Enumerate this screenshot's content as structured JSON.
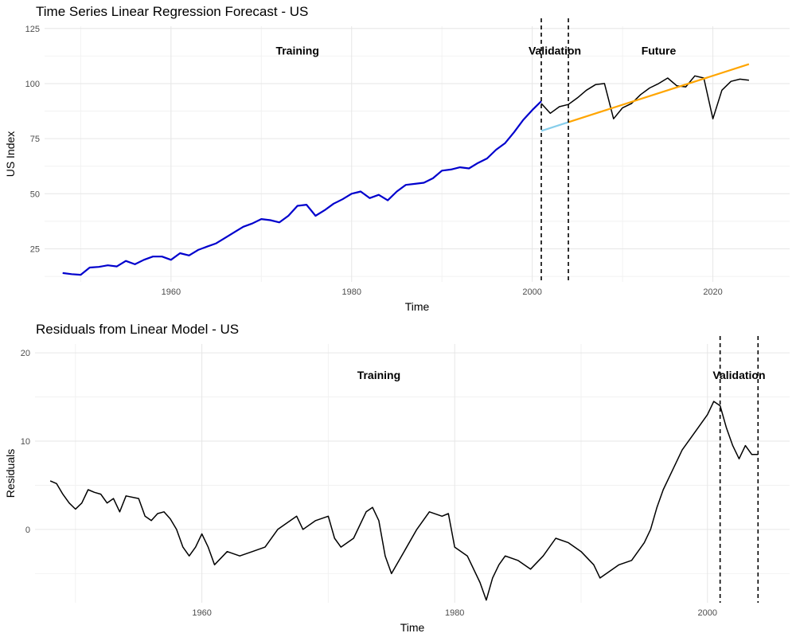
{
  "chart_data": [
    {
      "type": "line",
      "title": "Time Series Linear Regression Forecast - US",
      "xlabel": "Time",
      "ylabel": "US Index",
      "xlim": [
        1946,
        2028.5
      ],
      "ylim": [
        10,
        126
      ],
      "x_ticks": [
        1960,
        1980,
        2000,
        2020
      ],
      "y_ticks": [
        25,
        50,
        75,
        100,
        125
      ],
      "grid": true,
      "legend": "none",
      "annotations": [
        {
          "text": "Training",
          "x": 1974,
          "y": 115
        },
        {
          "text": "Validation",
          "x": 2002.5,
          "y": 115
        },
        {
          "text": "Future",
          "x": 2014,
          "y": 115
        }
      ],
      "vlines": [
        2001,
        2004
      ],
      "series": [
        {
          "color": "#0000cd",
          "x": [
            1948,
            1949,
            1950,
            1951,
            1952,
            1953,
            1954,
            1955,
            1956,
            1957,
            1958,
            1959,
            1960,
            1961,
            1962,
            1963,
            1964,
            1965,
            1966,
            1967,
            1968,
            1969,
            1970,
            1971,
            1972,
            1973,
            1974,
            1975,
            1976,
            1977,
            1978,
            1979,
            1980,
            1981,
            1982,
            1983,
            1984,
            1985,
            1986,
            1987,
            1988,
            1989,
            1990,
            1991,
            1992,
            1993,
            1994,
            1995,
            1996,
            1997,
            1998,
            1999,
            2000,
            2001
          ],
          "y": [
            14,
            13.5,
            13.2,
            16.5,
            16.8,
            17.5,
            17,
            19.5,
            18,
            20,
            21.5,
            21.5,
            20,
            23,
            22,
            24.5,
            26,
            27.5,
            30,
            32.5,
            35,
            36.5,
            38.5,
            38,
            37,
            40,
            44.5,
            45,
            40,
            42.5,
            45.5,
            47.5,
            50,
            51,
            48,
            49.5,
            47,
            51,
            54,
            54.5,
            55,
            57,
            60.5,
            61,
            62,
            61.5,
            64,
            66,
            70,
            73,
            78,
            83.5,
            88,
            92
          ]
        },
        {
          "color": "#000000",
          "x": [
            2001,
            2002,
            2003,
            2004,
            2005,
            2006,
            2007,
            2008,
            2009,
            2010,
            2011,
            2012,
            2013,
            2014,
            2015,
            2016,
            2017,
            2018,
            2019,
            2020,
            2021,
            2022,
            2023,
            2024
          ],
          "y": [
            91,
            86.5,
            89.5,
            90.5,
            93.5,
            97,
            99.5,
            100,
            84,
            89,
            91,
            95,
            98,
            100,
            102.5,
            99,
            98.5,
            103.5,
            102.5,
            84,
            97,
            101,
            102,
            101.5
          ]
        },
        {
          "color": "#87ceeb",
          "x": [
            2001,
            2004
          ],
          "y": [
            78.5,
            82.5
          ]
        },
        {
          "color": "#ffa500",
          "x": [
            2004,
            2024
          ],
          "y": [
            82.5,
            108.8
          ]
        }
      ]
    },
    {
      "type": "line",
      "title": "Residuals from Linear Model - US",
      "xlabel": "Time",
      "ylabel": "Residuals",
      "xlim": [
        1946.8,
        2006.5
      ],
      "ylim": [
        -8.3,
        21
      ],
      "x_ticks": [
        1960,
        1980,
        2000
      ],
      "y_ticks": [
        0,
        10,
        20
      ],
      "grid": true,
      "legend": "none",
      "annotations": [
        {
          "text": "Training",
          "x": 1974,
          "y": 17.5
        },
        {
          "text": "Validation",
          "x": 2002.5,
          "y": 17.5
        }
      ],
      "vlines": [
        2001,
        2004
      ],
      "series": [
        {
          "color": "#000000",
          "x": [
            1948,
            1948.5,
            1949,
            1949.5,
            1950,
            1950.5,
            1951,
            1951.5,
            1952,
            1952.5,
            1953,
            1953.5,
            1954,
            1955,
            1955.5,
            1956,
            1956.5,
            1957,
            1957.5,
            1958,
            1958.5,
            1959,
            1959.5,
            1960,
            1960.5,
            1961,
            1962,
            1963,
            1964,
            1965,
            1966,
            1967,
            1967.5,
            1968,
            1969,
            1970,
            1970.5,
            1971,
            1972,
            1973,
            1973.5,
            1974,
            1974.5,
            1975,
            1976,
            1977,
            1978,
            1979,
            1979.5,
            1980,
            1981,
            1982,
            1982.5,
            1983,
            1983.5,
            1984,
            1985,
            1986,
            1987,
            1988,
            1989,
            1990,
            1991,
            1991.5,
            1992,
            1993,
            1994,
            1995,
            1995.5,
            1996,
            1996.5,
            1997,
            1998,
            1999,
            2000,
            2000.5,
            2001,
            2001.5,
            2002,
            2002.5,
            2003,
            2003.5,
            2004
          ],
          "y": [
            5.5,
            5.2,
            4,
            3,
            2.3,
            3,
            4.5,
            4.2,
            4,
            3,
            3.5,
            2,
            3.8,
            3.5,
            1.5,
            1,
            1.8,
            2,
            1.2,
            0,
            -2,
            -3,
            -2,
            -0.5,
            -2,
            -4,
            -2.5,
            -3,
            -2.5,
            -2,
            0,
            1,
            1.5,
            0,
            1,
            1.5,
            -1,
            -2,
            -1,
            2,
            2.5,
            1,
            -3,
            -5,
            -2.5,
            0,
            2,
            1.5,
            1.8,
            -2,
            -3,
            -6,
            -8,
            -5.5,
            -4,
            -3,
            -3.5,
            -4.5,
            -3,
            -1,
            -1.5,
            -2.5,
            -4,
            -5.5,
            -5,
            -4,
            -3.5,
            -1.5,
            0,
            2.5,
            4.5,
            6,
            9,
            11,
            13,
            14.5,
            14,
            11.5,
            9.5,
            8,
            9.5,
            8.5,
            8.5
          ]
        }
      ]
    }
  ]
}
